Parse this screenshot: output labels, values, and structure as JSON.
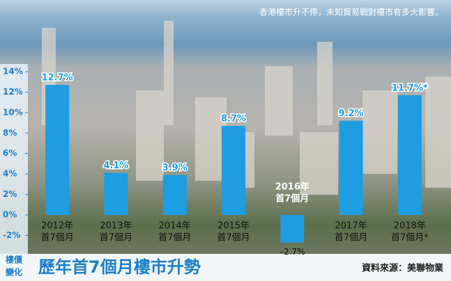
{
  "chart_data": {
    "type": "bar",
    "title": "歷年首7個月樓市升勢",
    "caption": "香港樓市升不停，未知貿易戰對樓市有多大影響。",
    "y_label": [
      "樓價",
      "變化"
    ],
    "source": "資料來源：美聯物業",
    "categories": [
      [
        "2012年",
        "首7個月"
      ],
      [
        "2013年",
        "首7個月"
      ],
      [
        "2014年",
        "首7個月"
      ],
      [
        "2015年",
        "首7個月"
      ],
      [
        "2016年",
        "首7個月"
      ],
      [
        "2017年",
        "首7個月"
      ],
      [
        "2018年",
        "首7個月*"
      ]
    ],
    "values": [
      12.7,
      4.1,
      3.9,
      8.7,
      -2.7,
      9.2,
      11.7
    ],
    "value_labels": [
      "12.7%",
      "4.1%",
      "3.9%",
      "8.7%",
      "–2.7%",
      "9.2%",
      "11.7%*"
    ],
    "color": "#1d9de2",
    "ylim": [
      -3.8,
      14.5
    ],
    "yticks": [
      {
        "value": -2,
        "label": "-2%"
      },
      {
        "value": 0,
        "label": "0%"
      },
      {
        "value": 2,
        "label": "2%"
      },
      {
        "value": 4,
        "label": "4%"
      },
      {
        "value": 6,
        "label": "6%"
      },
      {
        "value": 8,
        "label": "8%"
      },
      {
        "value": 10,
        "label": "10%"
      },
      {
        "value": 12,
        "label": "12%"
      },
      {
        "value": 14,
        "label": "14%"
      }
    ]
  }
}
